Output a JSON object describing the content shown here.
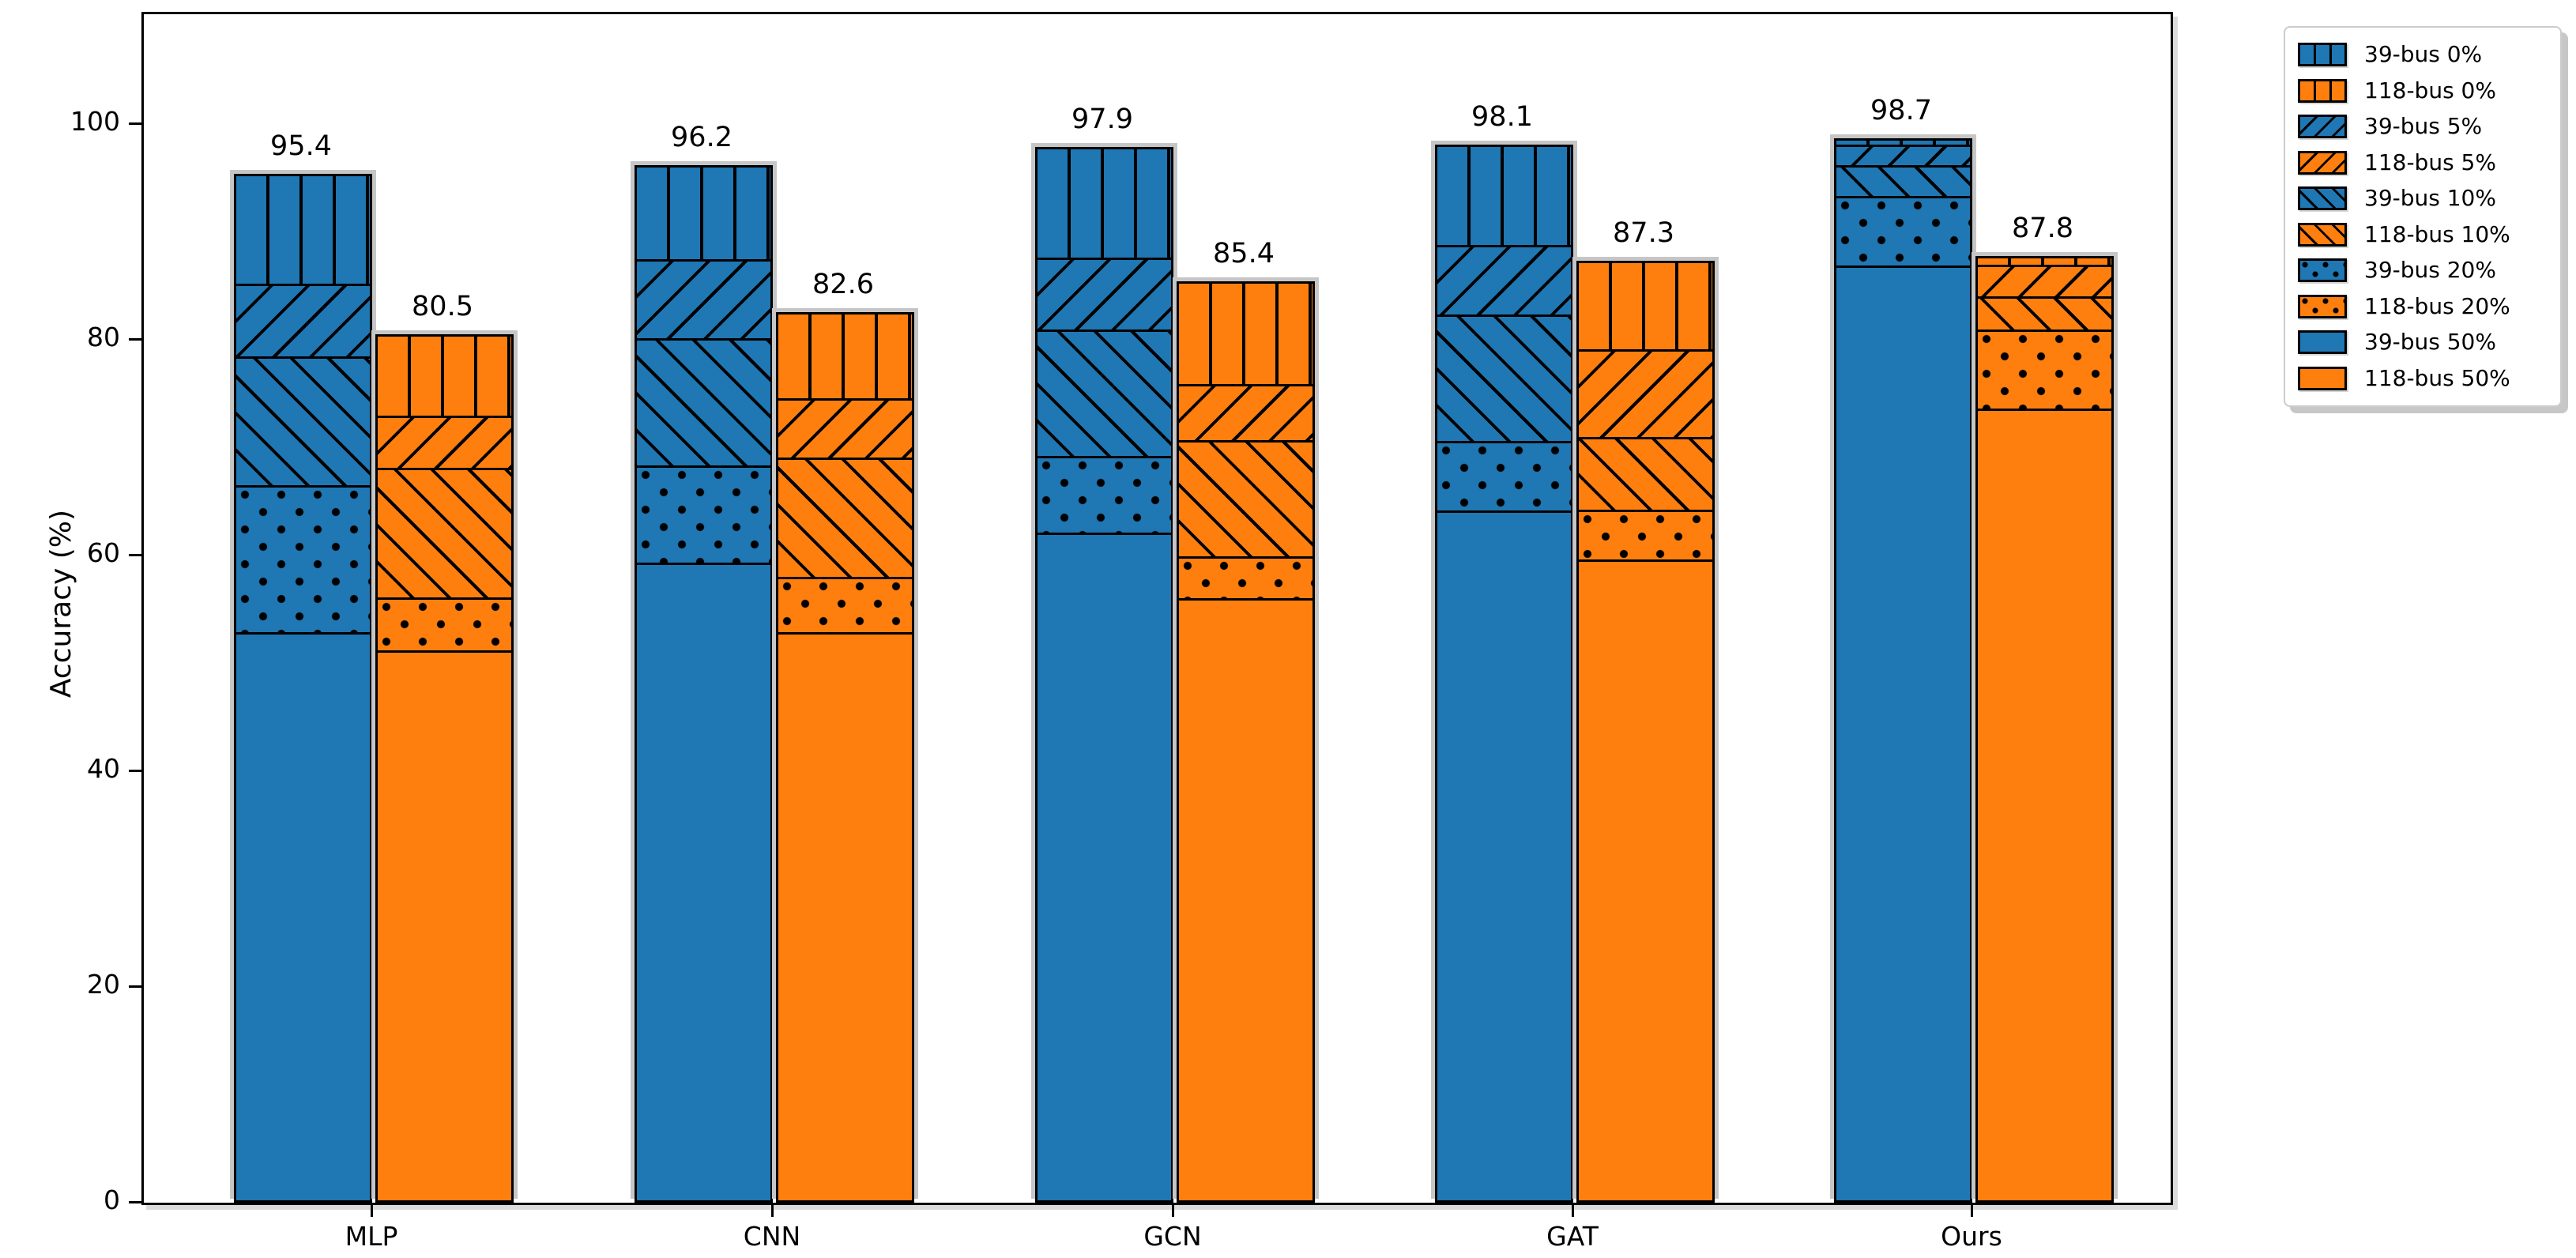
{
  "figure": {
    "ylabel": "Accuracy (%)"
  },
  "chart_data": {
    "type": "bar",
    "subtype": "overlaid-noise-level-bars",
    "title": "",
    "xlabel": "",
    "ylabel": "Accuracy (%)",
    "categories": [
      "MLP",
      "CNN",
      "GCN",
      "GAT",
      "Ours"
    ],
    "yticks": [
      0,
      20,
      40,
      60,
      80,
      100
    ],
    "ylim": [
      0,
      110
    ],
    "grid": false,
    "legend_position": "outside-upper-right",
    "colors": {
      "bus39": "#1f77b4",
      "bus118": "#ff7f0e"
    },
    "bar_value_labels": {
      "39-bus": [
        "95.4",
        "96.2",
        "97.9",
        "98.1",
        "98.7"
      ],
      "118-bus": [
        "80.5",
        "82.6",
        "85.4",
        "87.3",
        "87.8"
      ]
    },
    "series": [
      {
        "name": "39-bus 0%",
        "bus": "39-bus",
        "noise": "0%",
        "color": "#1f77b4",
        "hatch": "vertical",
        "values": [
          95.4,
          96.2,
          97.9,
          98.1,
          98.7
        ]
      },
      {
        "name": "118-bus 0%",
        "bus": "118-bus",
        "noise": "0%",
        "color": "#ff7f0e",
        "hatch": "vertical",
        "values": [
          80.5,
          82.6,
          85.4,
          87.3,
          87.8
        ]
      },
      {
        "name": "39-bus 5%",
        "bus": "39-bus",
        "noise": "5%",
        "color": "#1f77b4",
        "hatch": "diag-up",
        "values": [
          85.3,
          87.6,
          87.7,
          88.9,
          98.3
        ]
      },
      {
        "name": "118-bus 5%",
        "bus": "118-bus",
        "noise": "5%",
        "color": "#ff7f0e",
        "hatch": "diag-up",
        "values": [
          73.1,
          74.7,
          76.0,
          79.2,
          87.2
        ]
      },
      {
        "name": "39-bus 10%",
        "bus": "39-bus",
        "noise": "10%",
        "color": "#1f77b4",
        "hatch": "diag-down",
        "values": [
          78.7,
          80.4,
          81.2,
          82.6,
          96.6
        ]
      },
      {
        "name": "118-bus 10%",
        "bus": "118-bus",
        "noise": "10%",
        "color": "#ff7f0e",
        "hatch": "diag-down",
        "values": [
          68.4,
          69.3,
          70.9,
          71.2,
          84.4
        ]
      },
      {
        "name": "39-bus 20%",
        "bus": "39-bus",
        "noise": "20%",
        "color": "#1f77b4",
        "hatch": "dots",
        "values": [
          66.8,
          68.6,
          69.5,
          70.9,
          93.9
        ]
      },
      {
        "name": "118-bus 20%",
        "bus": "118-bus",
        "noise": "20%",
        "color": "#ff7f0e",
        "hatch": "dots",
        "values": [
          56.4,
          58.3,
          60.2,
          64.6,
          81.5
        ]
      },
      {
        "name": "39-bus 50%",
        "bus": "39-bus",
        "noise": "50%",
        "color": "#1f77b4",
        "hatch": "solid",
        "values": [
          53.2,
          59.7,
          62.5,
          64.6,
          87.6
        ]
      },
      {
        "name": "118-bus 50%",
        "bus": "118-bus",
        "noise": "50%",
        "color": "#ff7f0e",
        "hatch": "solid",
        "values": [
          51.6,
          53.3,
          56.5,
          60.1,
          74.3
        ]
      }
    ]
  }
}
